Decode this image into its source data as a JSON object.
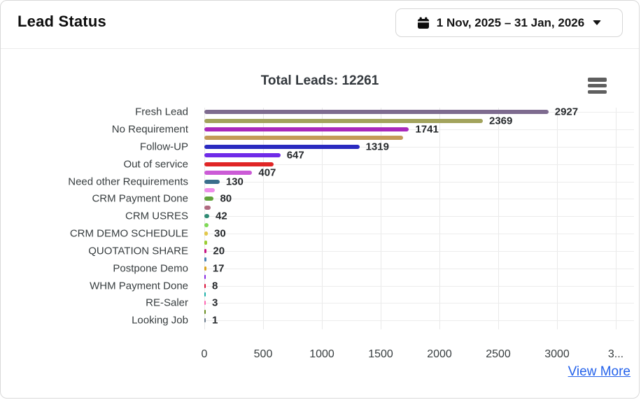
{
  "header": {
    "title": "Lead Status",
    "date_range_label": "1 Nov, 2025 – 31 Jan, 2026"
  },
  "chart": {
    "title": "Total Leads: 12261",
    "view_more_label": "View More",
    "link_color": "#2563eb"
  },
  "chart_data": {
    "type": "bar",
    "orientation": "horizontal",
    "title": "Total Leads: 12261",
    "total": 12261,
    "categories": [
      "Fresh Lead",
      "",
      "No Requirement",
      "",
      "Follow-UP",
      "",
      "Out of service",
      "",
      "Need other Requirements",
      "",
      "CRM Payment Done",
      "",
      "CRM USRES",
      "",
      "CRM DEMO SCHEDULE",
      "",
      "QUOTATION SHARE",
      "",
      "Postpone Demo",
      "",
      "WHM Payment Done",
      "",
      "RE-Saler",
      "",
      "Looking Job"
    ],
    "values": [
      2927,
      2369,
      1741,
      1690,
      1319,
      647,
      590,
      407,
      130,
      90,
      80,
      55,
      42,
      38,
      30,
      24,
      20,
      18,
      17,
      10,
      8,
      4,
      3,
      1,
      1
    ],
    "value_label_visible": [
      true,
      true,
      true,
      false,
      true,
      true,
      false,
      true,
      true,
      false,
      true,
      false,
      true,
      false,
      true,
      false,
      true,
      false,
      true,
      false,
      true,
      false,
      true,
      false,
      true
    ],
    "colors": [
      "#7e6b8f",
      "#a2a35c",
      "#a928bc",
      "#c49a58",
      "#2a2ac0",
      "#6f2be8",
      "#e02525",
      "#cb5bd6",
      "#3a6e8c",
      "#ee8cea",
      "#61a23a",
      "#b06a80",
      "#2f8b74",
      "#7ed956",
      "#e2c84a",
      "#9acd32",
      "#c71585",
      "#4682b4",
      "#daa520",
      "#8a2be2",
      "#dc143c",
      "#20b2aa",
      "#ff69b4",
      "#6b8e23",
      "#708090"
    ],
    "xticks": {
      "values": [
        0,
        500,
        1000,
        1500,
        2000,
        2500,
        3000,
        3500
      ],
      "labels": [
        "0",
        "500",
        "1000",
        "1500",
        "2000",
        "2500",
        "3000",
        "3..."
      ]
    },
    "xlim": [
      0,
      3655
    ],
    "grid": true,
    "legend": "none"
  }
}
